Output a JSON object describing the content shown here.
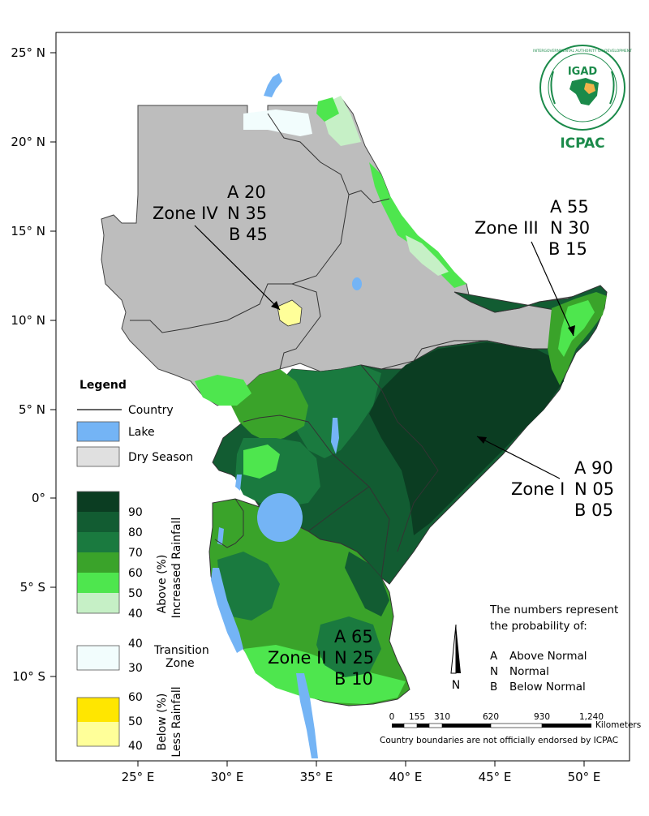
{
  "axes": {
    "lat_labels": [
      "25° N",
      "20° N",
      "15° N",
      "10° N",
      "5° N",
      "0°",
      "5° S",
      "10° S"
    ],
    "lon_labels": [
      "25° E",
      "30° E",
      "35° E",
      "40° E",
      "45° E",
      "50° E"
    ]
  },
  "zones": [
    {
      "name": "Zone IV",
      "a": "A 20",
      "n": "N 35",
      "b": "B 45"
    },
    {
      "name": "Zone III",
      "a": "A 55",
      "n": "N 30",
      "b": "B 15"
    },
    {
      "name": "Zone I",
      "a": "A 90",
      "n": "N 05",
      "b": "B 05"
    },
    {
      "name": "Zone II",
      "a": "A 65",
      "n": "N 25",
      "b": "B 10"
    }
  ],
  "legend": {
    "title": "Legend",
    "country": "Country",
    "lake": "Lake",
    "dry": "Dry Season",
    "above_ticks": [
      "90",
      "80",
      "70",
      "60",
      "50",
      "40"
    ],
    "above_label_1": "Above (%)",
    "above_label_2": "Increased Rainfall",
    "transition_ticks": [
      "40",
      "30"
    ],
    "transition_label_1": "Transition",
    "transition_label_2": "Zone",
    "below_ticks": [
      "60",
      "50",
      "40"
    ],
    "below_label_1": "Below (%)",
    "below_label_2": "Less Rainfall",
    "colors": {
      "above": [
        "#0b3d22",
        "#125c32",
        "#1a7a3f",
        "#3aa32a",
        "#4ee64e",
        "#c6f0c6"
      ],
      "transition": "#f2fdfd",
      "below": [
        "#ffe600",
        "#ffff99"
      ],
      "lake": "#74b4f5",
      "dry": "#bdbdbd",
      "dry_legend": "#e0e0e0"
    }
  },
  "note": {
    "line1": "The numbers represent",
    "line2": "the probability of:",
    "a_key": "A",
    "a_label": "Above Normal",
    "n_key": "N",
    "n_label": "Normal",
    "b_key": "B",
    "b_label": "Below Normal"
  },
  "north_label": "N",
  "scale": {
    "ticks": [
      "0",
      "155",
      "310",
      "620",
      "930",
      "1,240"
    ],
    "unit": "Kilometers"
  },
  "disclaimer": "Country boundaries are not officially endorsed by ICPAC",
  "logo": {
    "acronym": "IGAD",
    "org": "ICPAC",
    "ring_text": "INTERGOVERNMENTAL AUTHORITY ON DEVELOPMENT"
  }
}
